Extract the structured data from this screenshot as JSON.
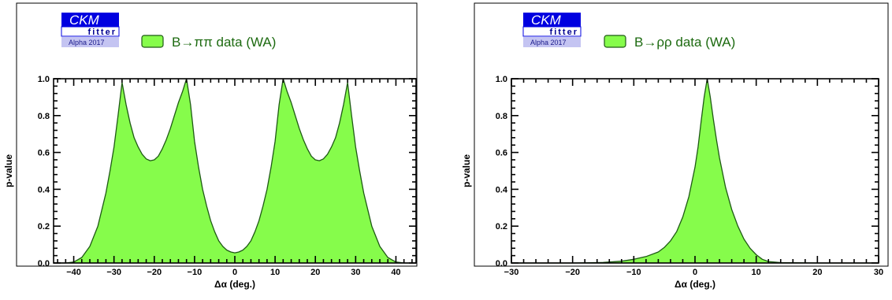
{
  "chart_data": [
    {
      "type": "area",
      "logo": {
        "line1": "CKM",
        "line2": "fitter",
        "line3": "Alpha 2017"
      },
      "legend": {
        "label": "B→ππ data (WA)"
      },
      "xlabel": "Δα (deg.)",
      "ylabel": "p-value",
      "xlim": [
        -45,
        45
      ],
      "ylim": [
        0,
        1.0
      ],
      "xticks": [
        -40,
        -30,
        -20,
        -10,
        0,
        10,
        20,
        30,
        40
      ],
      "yticks": [
        0.0,
        0.2,
        0.4,
        0.6,
        0.8,
        1.0
      ],
      "series": [
        {
          "x": [
            -45,
            -42,
            -40,
            -38,
            -36,
            -34,
            -32,
            -31,
            -30,
            -29,
            -28,
            -27,
            -26,
            -25,
            -24,
            -23,
            -22,
            -21,
            -20,
            -19,
            -18,
            -17,
            -16,
            -15,
            -14,
            -13,
            -12,
            -11,
            -10,
            -9,
            -8,
            -7,
            -6,
            -5,
            -4,
            -3,
            -2,
            -1,
            0,
            1,
            2,
            3,
            4,
            5,
            6,
            7,
            8,
            9,
            10,
            11,
            12,
            13,
            14,
            15,
            16,
            17,
            18,
            19,
            20,
            21,
            22,
            23,
            24,
            25,
            26,
            27,
            28,
            29,
            30,
            31,
            32,
            34,
            36,
            38,
            40,
            42,
            45
          ],
          "y": [
            0,
            0,
            0.005,
            0.03,
            0.09,
            0.2,
            0.38,
            0.5,
            0.63,
            0.8,
            0.98,
            0.86,
            0.76,
            0.68,
            0.63,
            0.59,
            0.565,
            0.555,
            0.56,
            0.58,
            0.62,
            0.67,
            0.73,
            0.8,
            0.87,
            0.93,
            1.0,
            0.86,
            0.66,
            0.52,
            0.4,
            0.31,
            0.23,
            0.17,
            0.12,
            0.09,
            0.07,
            0.06,
            0.055,
            0.06,
            0.07,
            0.09,
            0.12,
            0.17,
            0.23,
            0.31,
            0.4,
            0.52,
            0.66,
            0.86,
            1.0,
            0.93,
            0.87,
            0.8,
            0.73,
            0.67,
            0.62,
            0.58,
            0.56,
            0.555,
            0.565,
            0.59,
            0.63,
            0.68,
            0.76,
            0.86,
            0.98,
            0.8,
            0.63,
            0.5,
            0.38,
            0.2,
            0.09,
            0.03,
            0.005,
            0,
            0
          ]
        }
      ]
    },
    {
      "type": "area",
      "logo": {
        "line1": "CKM",
        "line2": "fitter",
        "line3": "Alpha 2017"
      },
      "legend": {
        "label": "B→ρρ data (WA)"
      },
      "xlabel": "Δα (deg.)",
      "ylabel": "p-value",
      "xlim": [
        -30,
        30
      ],
      "ylim": [
        0,
        1.0
      ],
      "xticks": [
        -30,
        -20,
        -10,
        0,
        10,
        20,
        30
      ],
      "yticks": [
        0.0,
        0.2,
        0.4,
        0.6,
        0.8,
        1.0
      ],
      "series": [
        {
          "x": [
            -30,
            -20,
            -15,
            -12,
            -10,
            -8,
            -6,
            -5,
            -4,
            -3,
            -2,
            -1,
            0,
            0.5,
            1,
            1.5,
            2,
            2.5,
            3,
            3.5,
            4,
            5,
            6,
            7,
            8,
            9,
            10,
            11,
            12,
            14,
            20,
            30
          ],
          "y": [
            0,
            0,
            0.003,
            0.01,
            0.02,
            0.035,
            0.06,
            0.085,
            0.12,
            0.17,
            0.25,
            0.36,
            0.52,
            0.63,
            0.77,
            0.9,
            1.0,
            0.9,
            0.78,
            0.67,
            0.57,
            0.41,
            0.29,
            0.2,
            0.13,
            0.08,
            0.045,
            0.02,
            0.008,
            0.002,
            0,
            0
          ]
        }
      ]
    }
  ]
}
